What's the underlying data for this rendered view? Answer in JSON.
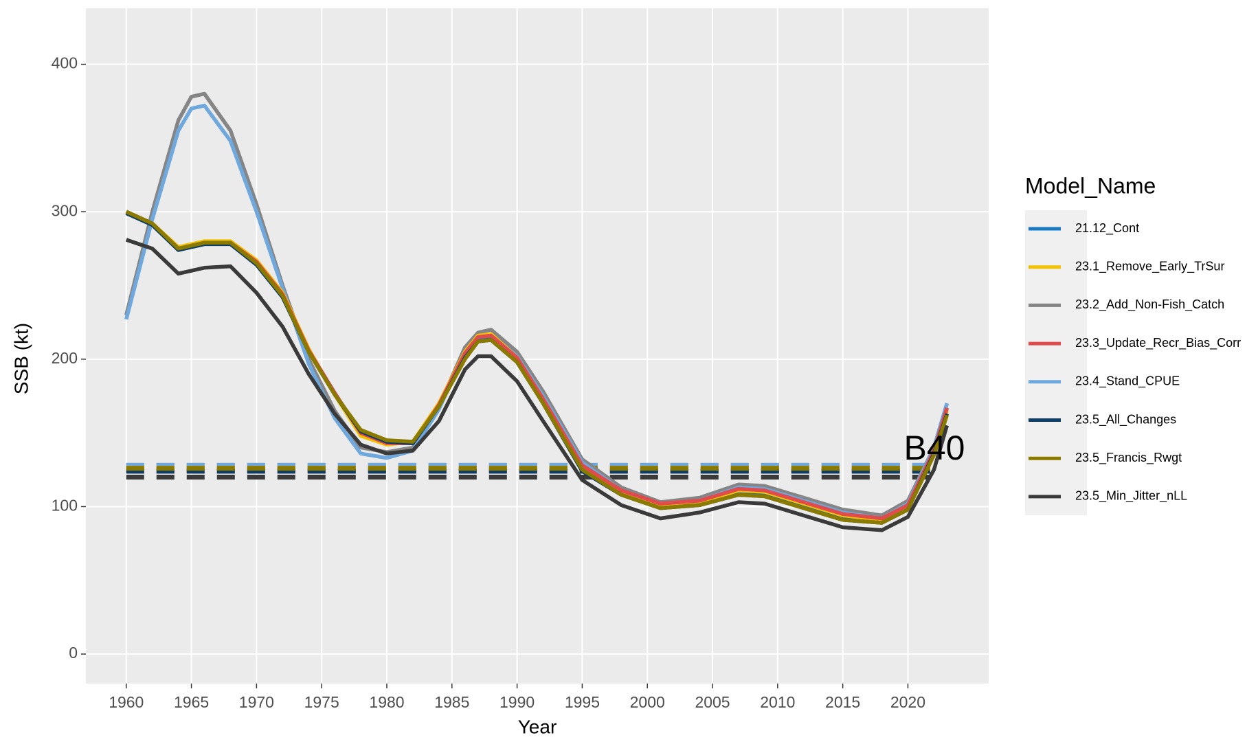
{
  "chart_data": {
    "type": "line",
    "x_label": "Year",
    "y_label": "SSB (kt)",
    "legend_title": "Model_Name",
    "annotation": "B40",
    "x": [
      1960,
      1962,
      1964,
      1965,
      1966,
      1968,
      1970,
      1972,
      1974,
      1976,
      1978,
      1980,
      1982,
      1984,
      1986,
      1987,
      1988,
      1990,
      1992,
      1995,
      1998,
      2001,
      2004,
      2007,
      2009,
      2012,
      2015,
      2018,
      2020,
      2022,
      2023
    ],
    "series": [
      {
        "name": "23.2_Add_Non-Fish_Catch",
        "color": "#858585",
        "b40": 128,
        "values": [
          230,
          300,
          362,
          378,
          380,
          355,
          305,
          250,
          200,
          165,
          140,
          137,
          140,
          168,
          208,
          218,
          220,
          205,
          178,
          132,
          113,
          103,
          106,
          115,
          114,
          106,
          98,
          94,
          104,
          140,
          170
        ]
      },
      {
        "name": "23.4_Stand_CPUE",
        "color": "#6fa8dc",
        "b40": 128,
        "values": [
          227,
          295,
          355,
          370,
          372,
          348,
          300,
          248,
          197,
          160,
          136,
          133,
          138,
          166,
          205,
          215,
          216,
          202,
          175,
          130,
          111,
          101,
          104,
          113,
          112,
          104,
          96,
          92,
          102,
          140,
          170
        ]
      },
      {
        "name": "21.12_Cont",
        "color": "#1a78c2",
        "b40": 125,
        "values": [
          300,
          292,
          275,
          277,
          279,
          279,
          266,
          244,
          206,
          177,
          150,
          143,
          143,
          168,
          203,
          214,
          215,
          200,
          172,
          127,
          110,
          101,
          103,
          110,
          109,
          101,
          93,
          91,
          100,
          138,
          167
        ]
      },
      {
        "name": "23.1_Remove_Early_TrSur",
        "color": "#f2c200",
        "b40": 126,
        "values": [
          300,
          292,
          276,
          278,
          280,
          280,
          267,
          245,
          207,
          176,
          148,
          142,
          144,
          170,
          205,
          216,
          217,
          201,
          173,
          127,
          110,
          100,
          103,
          111,
          110,
          102,
          94,
          91,
          100,
          137,
          165
        ]
      },
      {
        "name": "23.3_Update_Recr_Bias_Corr",
        "color": "#e04b4b",
        "b40": 124,
        "values": [
          300,
          292,
          275,
          277,
          279,
          279,
          266,
          244,
          206,
          177,
          150,
          143,
          143,
          169,
          204,
          215,
          216,
          201,
          173,
          128,
          111,
          102,
          104,
          112,
          111,
          103,
          95,
          92,
          101,
          138,
          167
        ]
      },
      {
        "name": "23.5_All_Changes",
        "color": "#0b3d66",
        "b40": 124,
        "values": [
          299,
          291,
          274,
          276,
          278,
          278,
          264,
          242,
          205,
          176,
          151,
          144,
          143,
          168,
          201,
          212,
          213,
          198,
          170,
          124,
          108,
          99,
          101,
          108,
          107,
          99,
          91,
          89,
          98,
          136,
          163
        ]
      },
      {
        "name": "23.5_Francis_Rwgt",
        "color": "#8b7a00",
        "b40": 126,
        "values": [
          300,
          292,
          275,
          277,
          279,
          279,
          265,
          243,
          205,
          176,
          152,
          145,
          144,
          168,
          200,
          212,
          213,
          198,
          170,
          125,
          108,
          99,
          101,
          108,
          107,
          99,
          91,
          89,
          98,
          135,
          162
        ]
      },
      {
        "name": "23.5_Min_Jitter_nLL",
        "color": "#3a3a3a",
        "b40": 120,
        "values": [
          281,
          275,
          258,
          260,
          262,
          263,
          245,
          222,
          190,
          163,
          142,
          136,
          138,
          158,
          193,
          202,
          202,
          185,
          158,
          118,
          101,
          92,
          96,
          103,
          102,
          94,
          86,
          84,
          93,
          125,
          155
        ]
      }
    ],
    "legend_order": [
      2,
      3,
      0,
      4,
      1,
      5,
      6,
      7
    ],
    "xlim": [
      1956.9,
      2026.2
    ],
    "xticks": [
      1960,
      1965,
      1970,
      1975,
      1980,
      1985,
      1990,
      1995,
      2000,
      2005,
      2010,
      2015,
      2020
    ],
    "ylim": [
      -20,
      438
    ],
    "yticks": [
      0,
      100,
      200,
      300,
      400
    ],
    "grid": true
  }
}
